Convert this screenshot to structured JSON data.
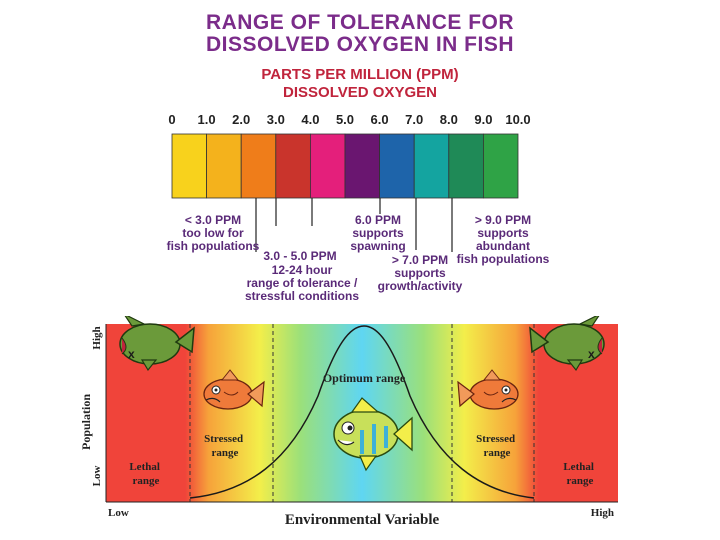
{
  "title": {
    "line1": "RANGE OF TOLERANCE FOR",
    "line2": "DISSOLVED OXYGEN IN FISH"
  },
  "subtitle": {
    "line1": "PARTS PER MILLION (PPM)",
    "line2": "DISSOLVED OXYGEN"
  },
  "scale": {
    "ticks": [
      "0",
      "1.0",
      "2.0",
      "3.0",
      "4.0",
      "5.0",
      "6.0",
      "7.0",
      "8.0",
      "9.0",
      "10.0"
    ],
    "colors": [
      "#f8d21c",
      "#f4b21c",
      "#ef7d1a",
      "#c9342c",
      "#e41f7b",
      "#6a1670",
      "#1e64aa",
      "#14a4a0",
      "#1f8a57",
      "#2fa346"
    ]
  },
  "annotations": [
    {
      "lines": [
        "< 3.0 PPM",
        "too low for",
        "fish populations"
      ]
    },
    {
      "lines": [
        "3.0 - 5.0 PPM"
      ]
    },
    {
      "lines": [
        "12-24 hour",
        "range of tolerance /",
        "stressful conditions"
      ]
    },
    {
      "lines": [
        "6.0 PPM",
        "supports",
        "spawning"
      ]
    },
    {
      "lines": [
        "> 7.0 PPM",
        "supports",
        "growth/activity"
      ]
    },
    {
      "lines": [
        "> 9.0 PPM",
        "supports",
        "abundant",
        "fish populations"
      ]
    }
  ],
  "tolerance_graph": {
    "y_axis_label": "Population",
    "y_high": "High",
    "y_low": "Low",
    "x_axis_label": "Environmental Variable",
    "x_low": "Low",
    "x_high": "High",
    "optimum_label": "Optimum range",
    "stressed_left": [
      "Stressed",
      "range"
    ],
    "stressed_right": [
      "Stressed",
      "range"
    ],
    "lethal_left": [
      "Lethal",
      "range"
    ],
    "lethal_right": [
      "Lethal",
      "range"
    ],
    "dead_fish_mark": "x"
  },
  "colors": {
    "title": "#7b2c8a",
    "subtitle": "#c0243c",
    "lethal": "#f0443a",
    "annotation_text": "#5a2a78"
  }
}
